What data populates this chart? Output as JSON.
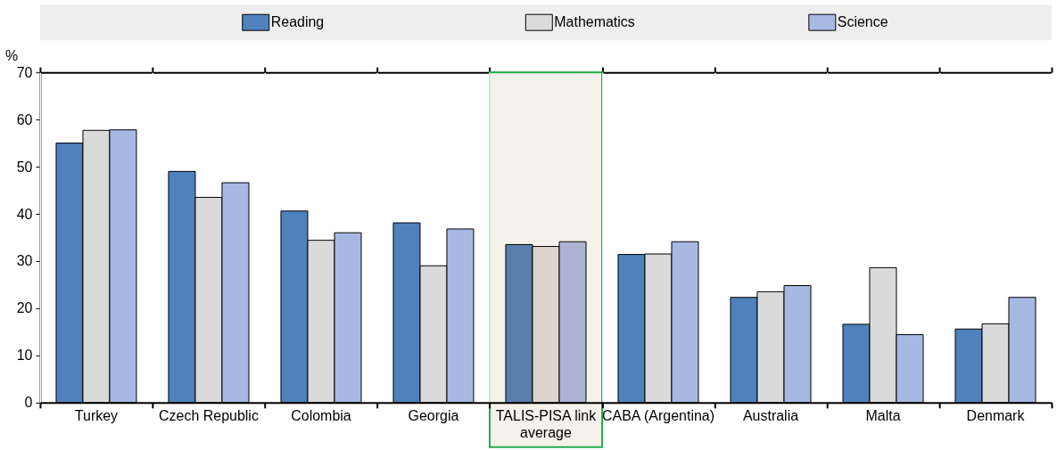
{
  "chart_data": {
    "type": "bar",
    "ylabel": "%",
    "categories": [
      "Turkey",
      "Czech Republic",
      "Colombia",
      "Georgia",
      "TALIS-PISA link average",
      "CABA (Argentina)",
      "Australia",
      "Malta",
      "Denmark"
    ],
    "series": [
      {
        "name": "Reading",
        "color": "#4f81bd",
        "colors": [
          "#4f81bd",
          "#4f81bd",
          "#4f81bd",
          "#4f81bd",
          "#5b7fad",
          "#4f81bd",
          "#4f81bd",
          "#4f81bd",
          "#4f81bd"
        ],
        "values": [
          55.0,
          49.0,
          40.6,
          38.1,
          33.5,
          31.4,
          22.3,
          16.6,
          15.6
        ]
      },
      {
        "name": "Mathematics",
        "color": "#dadada",
        "colors": [
          "#dadada",
          "#dadada",
          "#dadada",
          "#dadada",
          "#ddd4cb",
          "#dadada",
          "#dadada",
          "#dadada",
          "#dadada"
        ],
        "values": [
          57.7,
          43.5,
          34.4,
          29.0,
          33.1,
          31.5,
          23.5,
          28.6,
          16.7
        ]
      },
      {
        "name": "Science",
        "color": "#a7b8e3",
        "colors": [
          "#a7b8e3",
          "#a7b8e3",
          "#a7b8e3",
          "#a7b8e3",
          "#adb3d2",
          "#a7b8e3",
          "#a7b8e3",
          "#a7b8e3",
          "#a7b8e3"
        ],
        "values": [
          57.8,
          46.6,
          36.0,
          36.8,
          34.1,
          34.1,
          24.8,
          14.4,
          22.3
        ]
      }
    ],
    "bands": [
      {
        "axis": "x",
        "from": "TALIS-PISA link average",
        "to": "TALIS-PISA link average",
        "color": "#f4f2ea"
      }
    ],
    "ylim": [
      0,
      70
    ],
    "yticks": [
      0,
      10,
      20,
      30,
      40,
      50,
      60,
      70
    ],
    "grid": true,
    "legend": "top"
  }
}
